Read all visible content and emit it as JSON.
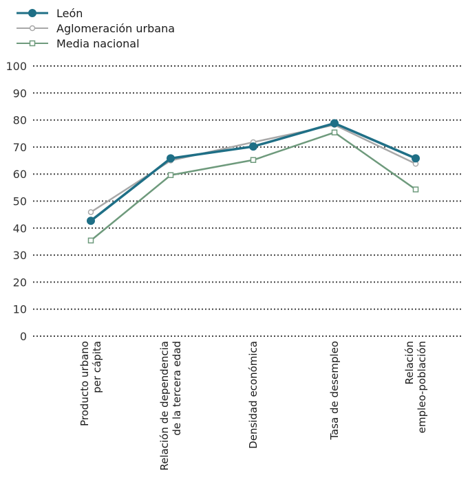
{
  "chart_data": {
    "type": "line",
    "categories": [
      [
        "Producto urbano",
        "per cápita"
      ],
      [
        "Relación de dependencia",
        "de la tercera edad"
      ],
      [
        "Densidad económica"
      ],
      [
        "Tasa de desempleo"
      ],
      [
        "Relación",
        "empleo-población"
      ]
    ],
    "ylim": [
      0,
      100
    ],
    "yticks": [
      0,
      10,
      20,
      30,
      40,
      50,
      60,
      70,
      80,
      90,
      100
    ],
    "grid": true,
    "legend_position": "top-left",
    "series": [
      {
        "name": "León",
        "values": [
          42.7,
          65.8,
          70.2,
          78.8,
          65.8
        ],
        "color": "#1f6f86",
        "marker": "filled-circle"
      },
      {
        "name": "Aglomeración urbana",
        "values": [
          45.9,
          65.0,
          71.8,
          78.2,
          63.8
        ],
        "color": "#a8a8a8",
        "marker": "open-circle"
      },
      {
        "name": "Media nacional",
        "values": [
          35.4,
          59.6,
          65.2,
          75.4,
          54.3
        ],
        "color": "#6e9a7c",
        "marker": "open-square"
      }
    ]
  }
}
